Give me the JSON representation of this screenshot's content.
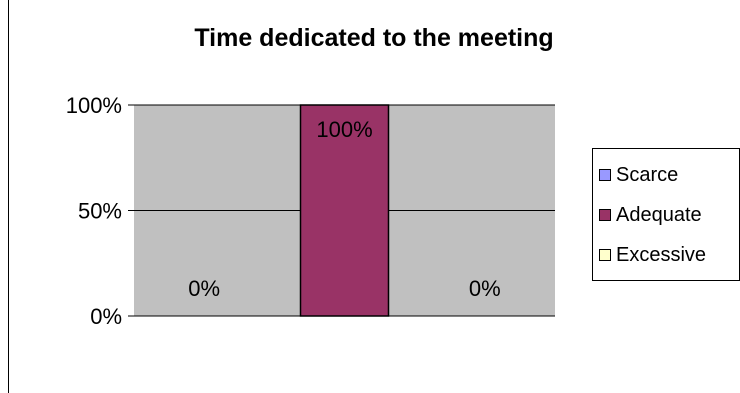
{
  "chart_data": {
    "type": "bar",
    "title": "Time dedicated to the meeting",
    "xlabel": "",
    "ylabel": "",
    "ylim": [
      0,
      1
    ],
    "y_ticks": [
      {
        "value": 0,
        "label": "0%"
      },
      {
        "value": 0.5,
        "label": "50%"
      },
      {
        "value": 1,
        "label": "100%"
      }
    ],
    "grid": true,
    "legend_position": "right",
    "series": [
      {
        "name": "Scarce",
        "value": 0,
        "label": "0%",
        "color": "#9999ff"
      },
      {
        "name": "Adequate",
        "value": 1,
        "label": "100%",
        "color": "#993366"
      },
      {
        "name": "Excessive",
        "value": 0,
        "label": "0%",
        "color": "#ffffcc"
      }
    ],
    "plot_background": "#c0c0c0"
  }
}
